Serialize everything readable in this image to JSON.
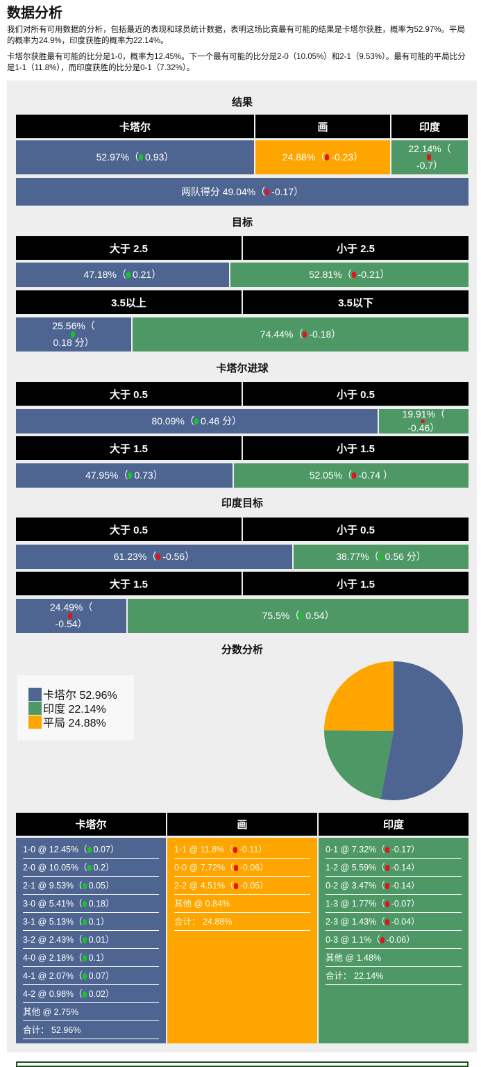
{
  "title": "数据分析",
  "intro1": "我们对所有可用数据的分析，包括最近的表现和球员统计数据，表明这场比赛最有可能的结果是卡塔尔获胜，概率为52.97%。平局的概率为24.9%，印度获胜的概率为22.14%。",
  "intro2": "卡塔尔获胜最有可能的比分是1-0，概率为12.45%。下一个最有可能的比分是2-0（10.05%）和2-1（9.53%）。最有可能的平局比分是1-1（11.8%），而印度获胜的比分是0-1（7.32%）。",
  "colors": {
    "qatar": "#4f6591",
    "india": "#4e9866",
    "draw": "#ffa500"
  },
  "result": {
    "title": "结果",
    "headers": [
      "卡塔尔",
      "画",
      "印度"
    ],
    "cells": [
      {
        "text": "52.97%（",
        "trend": "up",
        "delta": "0.93）",
        "pct": 52.97,
        "c": "b"
      },
      {
        "text": "24.88%（",
        "trend": "down",
        "delta": "-0.23）",
        "pct": 24.88,
        "c": "o"
      },
      {
        "text": "22.14%（",
        "trend": "down",
        "delta": "-0.7）",
        "pct": 22.14,
        "c": "g"
      }
    ],
    "btts": {
      "text": "两队得分 49.04%（",
      "trend": "down",
      "delta": "-0.17）"
    }
  },
  "markets": [
    {
      "title": "目标",
      "pairs": [
        {
          "headers": [
            "大于 2.5",
            "小于 2.5"
          ],
          "cells": [
            {
              "text": "47.18%（",
              "trend": "up",
              "delta": "0.21）",
              "pct": 47.18
            },
            {
              "text": "52.81%（",
              "trend": "down",
              "delta": "-0.21）",
              "pct": 52.81
            }
          ]
        },
        {
          "headers": [
            "3.5以上",
            "3.5以下"
          ],
          "cells": [
            {
              "text": "25.56%（",
              "trend": "up",
              "delta": "0.18 分）",
              "pct": 25.56
            },
            {
              "text": "74.44%（",
              "trend": "down",
              "delta": "-0.18）",
              "pct": 74.44
            }
          ]
        }
      ]
    },
    {
      "title": "卡塔尔进球",
      "pairs": [
        {
          "headers": [
            "大于 0.5",
            "小于 0.5"
          ],
          "cells": [
            {
              "text": "80.09%（",
              "trend": "up",
              "delta": "0.46 分）",
              "pct": 80.09
            },
            {
              "text": "19.91%（",
              "trend": "down",
              "delta": "-0.46）",
              "pct": 19.91
            }
          ]
        },
        {
          "headers": [
            "大于 1.5",
            "小于 1.5"
          ],
          "cells": [
            {
              "text": "47.95%（",
              "trend": "up",
              "delta": "0.73）",
              "pct": 47.95
            },
            {
              "text": "52.05%（",
              "trend": "down",
              "delta": "-0.74 ）",
              "pct": 52.05
            }
          ]
        }
      ]
    },
    {
      "title": "印度目标",
      "pairs": [
        {
          "headers": [
            "大于 0.5",
            "小于 0.5"
          ],
          "cells": [
            {
              "text": "61.23%（",
              "trend": "down",
              "delta": "-0.56）",
              "pct": 61.23
            },
            {
              "text": "38.77%（",
              "trend": "up",
              "delta": "0.56 分）",
              "pct": 38.77
            }
          ]
        },
        {
          "headers": [
            "大于 1.5",
            "小于 1.5"
          ],
          "cells": [
            {
              "text": "24.49%（",
              "trend": "down",
              "delta": "-0.54）",
              "pct": 24.49
            },
            {
              "text": "75.5%（",
              "trend": "up",
              "delta": "0.54）",
              "pct": 75.5
            }
          ]
        }
      ]
    }
  ],
  "score": {
    "title": "分数分析",
    "legend": [
      {
        "label": "卡塔尔 52.96%",
        "value": 52.96,
        "color": "#4f6591"
      },
      {
        "label": "印度 22.14%",
        "value": 22.14,
        "color": "#4e9866"
      },
      {
        "label": "平局 24.88%",
        "value": 24.88,
        "color": "#ffa500"
      }
    ],
    "columns": [
      {
        "header": "卡塔尔",
        "c": "b",
        "items": [
          {
            "text": "1-0 @ 12.45%（",
            "trend": "up",
            "delta": "0.07）"
          },
          {
            "text": "2-0 @ 10.05%（",
            "trend": "up",
            "delta": "0.2）"
          },
          {
            "text": "2-1 @ 9.53%（",
            "trend": "up",
            "delta": "0.05）"
          },
          {
            "text": "3-0 @ 5.41%（",
            "trend": "up",
            "delta": "0.18）"
          },
          {
            "text": "3-1 @ 5.13%（",
            "trend": "up",
            "delta": "0.1）"
          },
          {
            "text": "3-2 @ 2.43%（",
            "trend": "up",
            "delta": "0.01）"
          },
          {
            "text": "4-0 @ 2.18%（",
            "trend": "up",
            "delta": "0.1）"
          },
          {
            "text": "4-1 @ 2.07%（",
            "trend": "up",
            "delta": "0.07）"
          },
          {
            "text": "4-2 @ 0.98%（",
            "trend": "up",
            "delta": "0.02）"
          },
          {
            "text": "其他 @ 2.75%"
          },
          {
            "text": "合计： 52.96%"
          }
        ]
      },
      {
        "header": "画",
        "c": "o",
        "items": [
          {
            "text": "1-1 @ 11.8%（",
            "trend": "down",
            "delta": "-0.11）"
          },
          {
            "text": "0-0 @ 7.72%（",
            "trend": "down",
            "delta": "-0.06）"
          },
          {
            "text": "2-2 @ 4.51%（",
            "trend": "down",
            "delta": "-0.05）"
          },
          {
            "text": "其他 @ 0.84%"
          },
          {
            "text": "合计： 24.88%"
          }
        ]
      },
      {
        "header": "印度",
        "c": "g",
        "items": [
          {
            "text": "0-1 @ 7.32%（",
            "trend": "down",
            "delta": "-0.17）"
          },
          {
            "text": "1-2 @ 5.59%（",
            "trend": "down",
            "delta": "-0.14）"
          },
          {
            "text": "0-2 @ 3.47%（",
            "trend": "down",
            "delta": "-0.14）"
          },
          {
            "text": "1-3 @ 1.77%（",
            "trend": "down",
            "delta": "-0.07）"
          },
          {
            "text": "2-3 @ 1.43%（",
            "trend": "down",
            "delta": "-0.04）"
          },
          {
            "text": "0-3 @ 1.1%（",
            "trend": "down",
            "delta": "-0.06）"
          },
          {
            "text": "其他 @ 1.48%"
          },
          {
            "text": "合计： 22.14%"
          }
        ]
      }
    ]
  }
}
